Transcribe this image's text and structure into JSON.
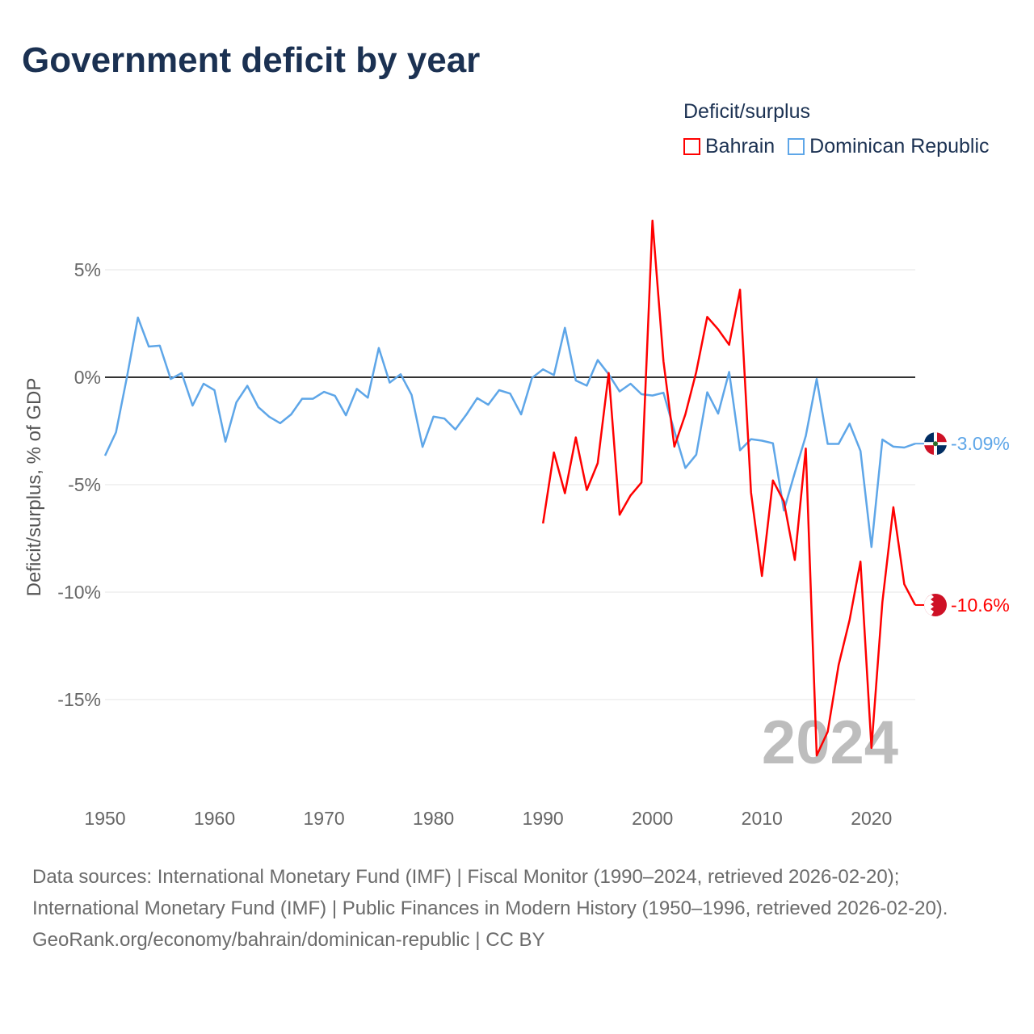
{
  "title": "Government deficit by year",
  "legend": {
    "title": "Deficit/surplus",
    "items": [
      {
        "label": "Bahrain",
        "color": "#ff0000"
      },
      {
        "label": "Dominican Republic",
        "color": "#5ea6e8"
      }
    ]
  },
  "chart_data": {
    "type": "line",
    "title": "Government deficit by year",
    "xlabel": "",
    "ylabel": "Deficit/surplus, % of GDP",
    "xlim": [
      1950,
      2024
    ],
    "ylim": [
      -19,
      8
    ],
    "yticks": [
      5,
      0,
      -5,
      -10,
      -15
    ],
    "ytick_labels": [
      "5%",
      "0%",
      "-5%",
      "-10%",
      "-15%"
    ],
    "xticks": [
      1950,
      1960,
      1970,
      1980,
      1990,
      2000,
      2010,
      2020
    ],
    "xtick_labels": [
      "1950",
      "1960",
      "1970",
      "1980",
      "1990",
      "2000",
      "2010",
      "2020"
    ],
    "year_watermark": "2024",
    "grid": true,
    "legend_position": "top-right",
    "series": [
      {
        "name": "Dominican Republic",
        "color": "#5ea6e8",
        "end_label": "-3.09%",
        "start_year": 1950,
        "values": [
          -3.65,
          -2.56,
          0.0,
          2.78,
          1.43,
          1.47,
          -0.08,
          0.19,
          -1.32,
          -0.3,
          -0.6,
          -3.0,
          -1.17,
          -0.4,
          -1.39,
          -1.84,
          -2.14,
          -1.73,
          -1.0,
          -1.0,
          -0.68,
          -0.86,
          -1.77,
          -0.54,
          -0.95,
          1.36,
          -0.25,
          0.14,
          -0.82,
          -3.24,
          -1.83,
          -1.92,
          -2.43,
          -1.74,
          -0.97,
          -1.28,
          -0.6,
          -0.76,
          -1.73,
          -0.03,
          0.37,
          0.1,
          2.3,
          -0.15,
          -0.39,
          0.8,
          0.14,
          -0.66,
          -0.3,
          -0.79,
          -0.85,
          -0.72,
          -2.5,
          -4.22,
          -3.6,
          -0.7,
          -1.69,
          0.25,
          -3.4,
          -2.88,
          -2.95,
          -3.07,
          -6.2,
          -4.44,
          -2.73,
          -0.08,
          -3.1,
          -3.1,
          -2.16,
          -3.43,
          -7.9,
          -2.9,
          -3.23,
          -3.27,
          -3.09
        ]
      },
      {
        "name": "Bahrain",
        "color": "#ff0000",
        "end_label": "-10.6%",
        "start_year": 1990,
        "values": [
          -6.8,
          -3.5,
          -5.4,
          -2.8,
          -5.25,
          -4.0,
          0.2,
          -6.4,
          -5.5,
          -4.9,
          7.29,
          0.75,
          -3.23,
          -1.73,
          0.25,
          2.81,
          2.23,
          1.51,
          4.07,
          -5.36,
          -9.25,
          -4.8,
          -5.78,
          -8.5,
          -3.32,
          -17.6,
          -16.5,
          -13.4,
          -11.3,
          -8.58,
          -17.25,
          -10.47,
          -6.05,
          -9.63,
          -10.6
        ]
      }
    ]
  },
  "footer": {
    "sources": "Data sources: International Monetary Fund (IMF) | Fiscal Monitor (1990–2024, retrieved 2026-02-20); International Monetary Fund (IMF) | Public Finances in Modern History (1950–1996, retrieved 2026-02-20).",
    "credit": "GeoRank.org/economy/bahrain/dominican-republic | CC BY"
  }
}
